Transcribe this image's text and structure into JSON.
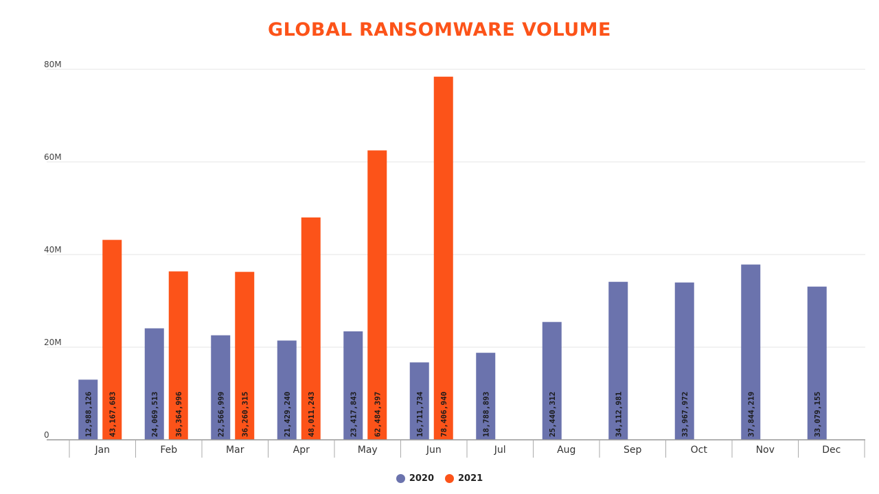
{
  "colors": {
    "title": "#fc5319",
    "s2020": "#6b73ad",
    "s2021": "#fc5319",
    "grid": "#e4e4e4",
    "axis": "#999999",
    "label": "#222222"
  },
  "chart_data": {
    "type": "bar",
    "title": "GLOBAL RANSOMWARE VOLUME",
    "xlabel": "",
    "ylabel": "",
    "categories": [
      "Jan",
      "Feb",
      "Mar",
      "Apr",
      "May",
      "Jun",
      "Jul",
      "Aug",
      "Sep",
      "Oct",
      "Nov",
      "Dec"
    ],
    "ylim": [
      0,
      80000000
    ],
    "yticks": [
      {
        "value": 0,
        "label": "0"
      },
      {
        "value": 20000000,
        "label": "20M"
      },
      {
        "value": 40000000,
        "label": "40M"
      },
      {
        "value": 60000000,
        "label": "60M"
      },
      {
        "value": 80000000,
        "label": "80M"
      }
    ],
    "grid": true,
    "legend": "bottom",
    "series": [
      {
        "name": "2020",
        "values": [
          12988126,
          24069513,
          22566999,
          21429240,
          23417843,
          16711734,
          18788893,
          25440312,
          34112981,
          33967972,
          37844219,
          33079155
        ],
        "labels": [
          "12,988,126",
          "24,069,513",
          "22,566,999",
          "21,429,240",
          "23,417,843",
          "16,711,734",
          "18,788,893",
          "25,440,312",
          "34,112,981",
          "33,967,972",
          "37,844,219",
          "33,079,155"
        ]
      },
      {
        "name": "2021",
        "values": [
          43167683,
          36364996,
          36260315,
          48011243,
          62484397,
          78406940,
          null,
          null,
          null,
          null,
          null,
          null
        ],
        "labels": [
          "43,167,683",
          "36,364,996",
          "36,260,315",
          "48,011,243",
          "62,484,397",
          "78,406,940",
          "",
          "",
          "",
          "",
          "",
          ""
        ]
      }
    ]
  }
}
